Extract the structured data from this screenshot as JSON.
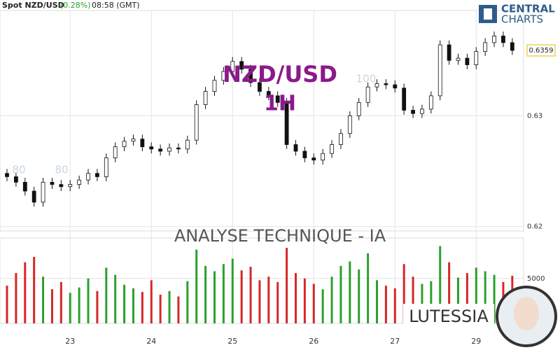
{
  "header": {
    "symbol": "Spot NZD/USD",
    "change": "(0.28%)",
    "time": "08:58 (GMT)"
  },
  "logo": {
    "line1": "CENTRAL",
    "line2": "CHARTS"
  },
  "overlay": {
    "pair": "NZD/USD",
    "timeframe": "1H",
    "banner": "ANALYSE TECHNIQUE - IA",
    "brand": "LUTESSIA"
  },
  "watermark": [
    "80",
    "80",
    "100"
  ],
  "chart_data": [
    {
      "type": "candlestick",
      "categories": [
        null,
        null,
        null,
        null,
        null,
        null,
        null,
        "23",
        null,
        null,
        null,
        null,
        null,
        null,
        null,
        null,
        "24",
        null,
        null,
        null,
        null,
        null,
        null,
        null,
        null,
        "25",
        null,
        null,
        null,
        null,
        null,
        null,
        null,
        null,
        "26",
        null,
        null,
        null,
        null,
        null,
        null,
        null,
        null,
        "27",
        null,
        null,
        null,
        null,
        null,
        null,
        null,
        null,
        "29",
        null,
        null,
        null,
        null
      ],
      "open": [
        0.6248,
        0.6245,
        0.624,
        0.6232,
        0.6222,
        0.624,
        0.6238,
        0.6236,
        0.6238,
        0.6242,
        0.6248,
        0.6245,
        0.6262,
        0.6272,
        0.6277,
        0.6279,
        0.6272,
        0.627,
        0.6268,
        0.6271,
        0.627,
        0.6278,
        0.631,
        0.6322,
        0.6332,
        0.634,
        0.6349,
        0.6342,
        0.633,
        0.6322,
        0.6318,
        0.6312,
        0.6274,
        0.6268,
        0.6262,
        0.626,
        0.6266,
        0.6274,
        0.6284,
        0.63,
        0.6312,
        0.6326,
        0.6329,
        0.6328,
        0.6325,
        0.6305,
        0.6302,
        0.6306,
        0.6318,
        0.6364,
        0.635,
        0.6352,
        0.6346,
        0.6358,
        0.6366,
        0.6372,
        0.6366
      ],
      "high": [
        0.6252,
        0.6249,
        0.6244,
        0.6236,
        0.6244,
        0.6244,
        0.6242,
        0.6242,
        0.6246,
        0.6252,
        0.6252,
        0.6266,
        0.6276,
        0.6281,
        0.6283,
        0.6283,
        0.6276,
        0.6274,
        0.6275,
        0.6275,
        0.6282,
        0.6314,
        0.6326,
        0.6336,
        0.6344,
        0.6353,
        0.6353,
        0.6346,
        0.6334,
        0.6326,
        0.6322,
        0.6316,
        0.6278,
        0.6272,
        0.6266,
        0.627,
        0.6278,
        0.6288,
        0.6304,
        0.6316,
        0.633,
        0.6333,
        0.6333,
        0.6332,
        0.6329,
        0.6309,
        0.631,
        0.6322,
        0.6368,
        0.6368,
        0.6356,
        0.6356,
        0.6362,
        0.637,
        0.6376,
        0.6376,
        0.637
      ],
      "low": [
        0.6241,
        0.6236,
        0.6228,
        0.6218,
        0.6218,
        0.6234,
        0.6232,
        0.6232,
        0.6234,
        0.6238,
        0.6241,
        0.6241,
        0.6258,
        0.6268,
        0.6273,
        0.6268,
        0.6266,
        0.6264,
        0.6264,
        0.6266,
        0.6266,
        0.6274,
        0.6306,
        0.6318,
        0.6328,
        0.6336,
        0.6338,
        0.6326,
        0.6318,
        0.6314,
        0.6308,
        0.627,
        0.6264,
        0.6258,
        0.6256,
        0.6256,
        0.6262,
        0.627,
        0.628,
        0.6296,
        0.6308,
        0.6322,
        0.6324,
        0.6321,
        0.6301,
        0.6298,
        0.6298,
        0.6302,
        0.6314,
        0.6346,
        0.6346,
        0.6342,
        0.6342,
        0.6354,
        0.6362,
        0.6362,
        0.6355
      ],
      "close": [
        0.6245,
        0.624,
        0.6232,
        0.6222,
        0.624,
        0.6238,
        0.6236,
        0.6238,
        0.6242,
        0.6248,
        0.6245,
        0.6262,
        0.6272,
        0.6277,
        0.6279,
        0.6272,
        0.627,
        0.6268,
        0.6271,
        0.627,
        0.6278,
        0.631,
        0.6322,
        0.6332,
        0.634,
        0.6349,
        0.6342,
        0.633,
        0.6322,
        0.6318,
        0.6312,
        0.6274,
        0.6268,
        0.6262,
        0.626,
        0.6266,
        0.6274,
        0.6284,
        0.63,
        0.6312,
        0.6326,
        0.6329,
        0.6328,
        0.6325,
        0.6305,
        0.6302,
        0.6306,
        0.6318,
        0.6364,
        0.635,
        0.6352,
        0.6346,
        0.6358,
        0.6366,
        0.6372,
        0.6366,
        0.6359
      ],
      "up_color": "#ffffff",
      "down_color": "#111111",
      "ylim": [
        0.6196,
        0.6395
      ],
      "yticks": [
        0.62,
        0.63
      ],
      "grid": true
    },
    {
      "type": "bar",
      "values": [
        4200,
        5600,
        6800,
        7400,
        5200,
        3800,
        4600,
        3400,
        4000,
        5000,
        3600,
        6200,
        5400,
        4300,
        3900,
        3500,
        4800,
        3200,
        3600,
        3000,
        4700,
        8200,
        6400,
        5800,
        6600,
        7200,
        5900,
        6300,
        4800,
        5200,
        4600,
        8400,
        5600,
        5000,
        4400,
        3800,
        5200,
        6400,
        6900,
        6000,
        7800,
        4800,
        4200,
        3900,
        6600,
        5200,
        4400,
        4700,
        8600,
        6800,
        5100,
        5600,
        6200,
        5800,
        5400,
        4600,
        5300
      ],
      "up_color": "#2ca02c",
      "down_color": "#d62728",
      "ylim": [
        0,
        9500
      ],
      "yticks": [
        5000
      ],
      "grid": true
    }
  ]
}
